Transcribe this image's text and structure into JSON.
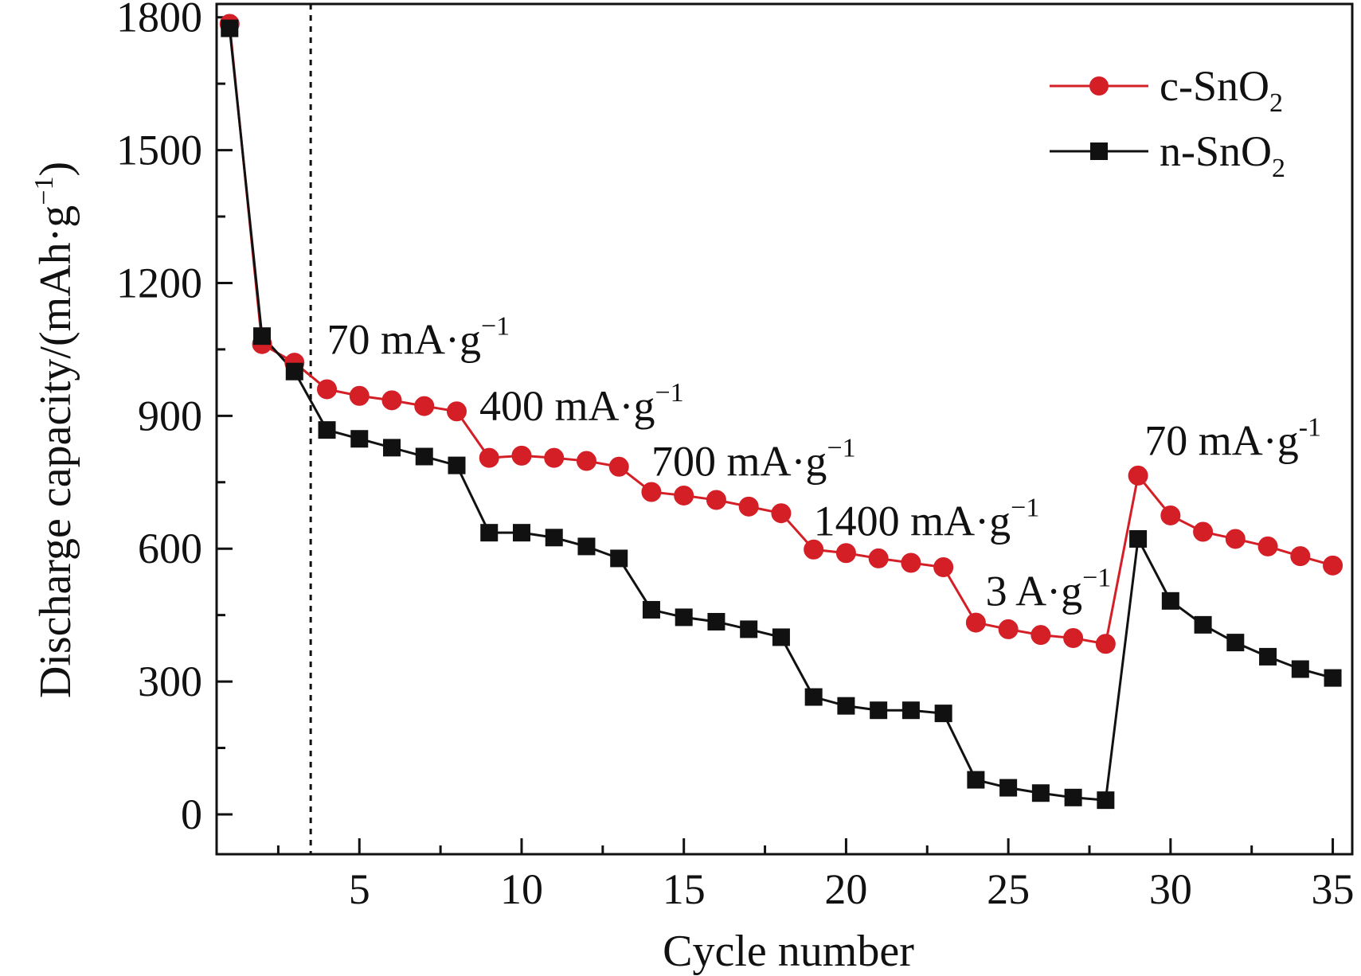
{
  "chart_data": {
    "type": "line",
    "xlabel": "Cycle number",
    "ylabel": "Discharge capacity/(mAh·g",
    "ylabel_sup": "−1",
    "ylabel_close": ")",
    "xlim": [
      0.6,
      35.6
    ],
    "ylim": [
      -90,
      1830
    ],
    "x_ticks": [
      5,
      10,
      15,
      20,
      25,
      30,
      35
    ],
    "x_minor_ticks": [
      2.5,
      7.5,
      12.5,
      17.5,
      22.5,
      27.5,
      32.5
    ],
    "y_ticks": [
      0,
      300,
      600,
      900,
      1200,
      1500,
      1800
    ],
    "y_minor_ticks": [
      150,
      450,
      750,
      1050,
      1350,
      1650
    ],
    "divider_x": 3.5,
    "series": [
      {
        "name": "c-SnO",
        "name_sub": "2",
        "color": "#d41f26",
        "marker": "circle",
        "x": [
          1,
          2,
          3,
          4,
          5,
          6,
          7,
          8,
          9,
          10,
          11,
          12,
          13,
          14,
          15,
          16,
          17,
          18,
          19,
          20,
          21,
          22,
          23,
          24,
          25,
          26,
          27,
          28,
          29,
          30,
          31,
          32,
          33,
          34,
          35
        ],
        "y": [
          1785,
          1062,
          1020,
          960,
          945,
          935,
          922,
          910,
          805,
          810,
          805,
          798,
          785,
          728,
          720,
          710,
          695,
          680,
          598,
          590,
          578,
          568,
          558,
          433,
          418,
          405,
          398,
          385,
          765,
          675,
          638,
          622,
          605,
          583,
          562
        ]
      },
      {
        "name": "n-SnO",
        "name_sub": "2",
        "color": "#111111",
        "marker": "square",
        "x": [
          1,
          2,
          3,
          4,
          5,
          6,
          7,
          8,
          9,
          10,
          11,
          12,
          13,
          14,
          15,
          16,
          17,
          18,
          19,
          20,
          21,
          22,
          23,
          24,
          25,
          26,
          27,
          28,
          29,
          30,
          31,
          32,
          33,
          34,
          35
        ],
        "y": [
          1775,
          1080,
          1000,
          868,
          848,
          828,
          808,
          788,
          636,
          636,
          625,
          605,
          578,
          462,
          445,
          435,
          418,
          400,
          265,
          245,
          235,
          235,
          228,
          78,
          60,
          48,
          38,
          32,
          622,
          482,
          428,
          388,
          356,
          328,
          308
        ]
      }
    ],
    "annotations": [
      {
        "text": "70 mA·g",
        "sup": "−1",
        "x": 4.0,
        "y": 1040
      },
      {
        "text": "400 mA·g",
        "sup": "−1",
        "x": 8.7,
        "y": 890
      },
      {
        "text": "700 mA·g",
        "sup": "−1",
        "x": 14.0,
        "y": 765
      },
      {
        "text": "1400 mA·g",
        "sup": "−1",
        "x": 19.0,
        "y": 630
      },
      {
        "text": "3 A·g",
        "sup": "−1",
        "x": 24.3,
        "y": 472
      },
      {
        "text": "70 mA·g",
        "sup": "-1",
        "x": 29.2,
        "y": 812
      }
    ],
    "legend_position": "top-right"
  }
}
